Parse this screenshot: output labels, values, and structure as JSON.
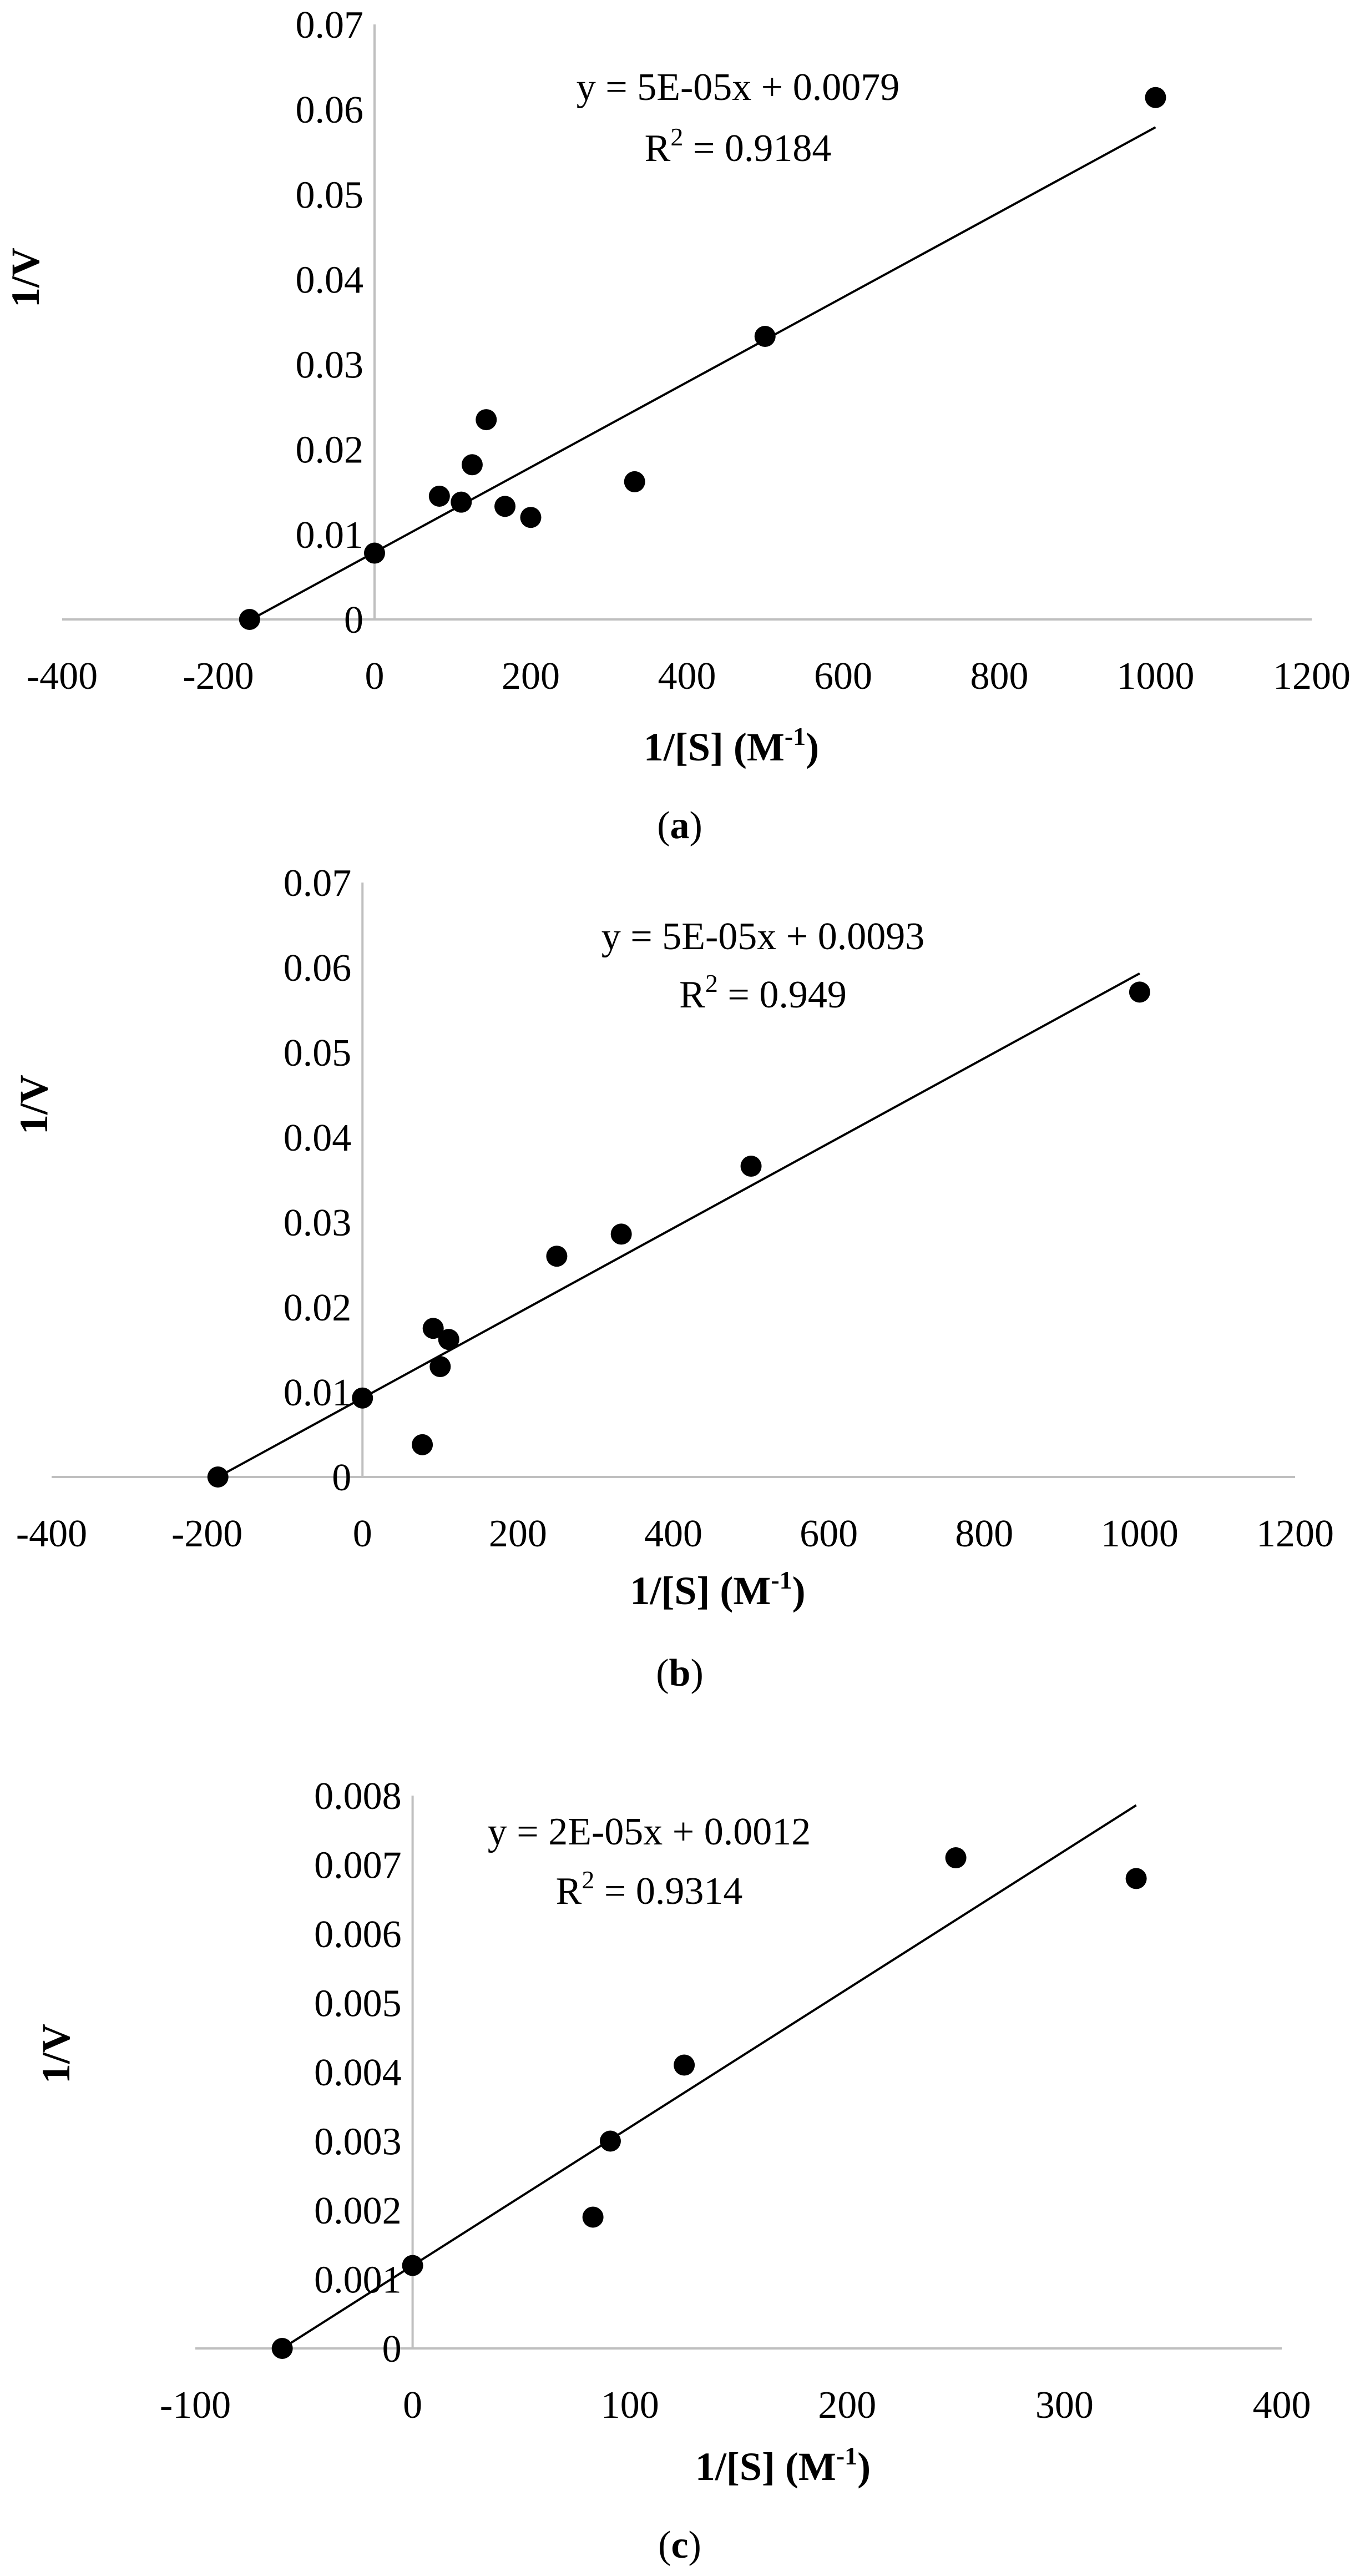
{
  "figure": {
    "panels": [
      {
        "caption_open": "(",
        "caption_letter": "a",
        "caption_close": ")"
      },
      {
        "caption_open": "(",
        "caption_letter": "b",
        "caption_close": ")"
      },
      {
        "caption_open": "(",
        "caption_letter": "c",
        "caption_close": ")"
      }
    ]
  },
  "chart_data": [
    {
      "type": "scatter",
      "title": "",
      "xlabel": "1/[S] (M",
      "xlabel_sup": "-1",
      "xlabel_close": ")",
      "ylabel": "1/V",
      "xlim": [
        -400,
        1200
      ],
      "ylim": [
        0,
        0.07
      ],
      "x_ticks": [
        "-400",
        "-200",
        "0",
        "200",
        "400",
        "600",
        "800",
        "1000",
        "1200"
      ],
      "x_tick_values": [
        -400,
        -200,
        0,
        200,
        400,
        600,
        800,
        1000,
        1200
      ],
      "y_ticks": [
        "0",
        "0.01",
        "0.02",
        "0.03",
        "0.04",
        "0.05",
        "0.06",
        "0.07"
      ],
      "y_tick_values": [
        0,
        0.01,
        0.02,
        0.03,
        0.04,
        0.05,
        0.06,
        0.07
      ],
      "grid": false,
      "series": [
        {
          "x": [
            -160,
            0,
            83,
            111,
            125,
            143,
            167,
            200,
            333,
            500,
            1000
          ],
          "y": [
            0,
            0.0078,
            0.0145,
            0.0138,
            0.0182,
            0.0235,
            0.0133,
            0.012,
            0.0162,
            0.0333,
            0.0614
          ]
        }
      ],
      "trendline": {
        "x_start": -160,
        "x_end": 1000,
        "slope": 5e-05,
        "intercept": 0.0079,
        "equation": "y = 5E-05x + 0.0079",
        "r2_prefix": "R",
        "r2_sup": "2",
        "r2_value": " = 0.9184"
      },
      "colors": {
        "marker": "#000000",
        "trendline": "#000000",
        "axis": "#bfbfbf"
      }
    },
    {
      "type": "scatter",
      "title": "",
      "xlabel": "1/[S] (M",
      "xlabel_sup": "-1",
      "xlabel_close": ")",
      "ylabel": "1/V",
      "xlim": [
        -400,
        1200
      ],
      "ylim": [
        0,
        0.07
      ],
      "x_ticks": [
        "-400",
        "-200",
        "0",
        "200",
        "400",
        "600",
        "800",
        "1000",
        "1200"
      ],
      "x_tick_values": [
        -400,
        -200,
        0,
        200,
        400,
        600,
        800,
        1000,
        1200
      ],
      "y_ticks": [
        "0",
        "0.01",
        "0.02",
        "0.03",
        "0.04",
        "0.05",
        "0.06",
        "0.07"
      ],
      "y_tick_values": [
        0,
        0.01,
        0.02,
        0.03,
        0.04,
        0.05,
        0.06,
        0.07
      ],
      "grid": false,
      "series": [
        {
          "x": [
            -186,
            0,
            77,
            91,
            100,
            111,
            250,
            333,
            500,
            1000
          ],
          "y": [
            0,
            0.0093,
            0.0038,
            0.0175,
            0.013,
            0.0162,
            0.026,
            0.0286,
            0.0366,
            0.0571
          ]
        }
      ],
      "trendline": {
        "x_start": -186,
        "x_end": 1000,
        "slope": 5e-05,
        "intercept": 0.0093,
        "equation": "y = 5E-05x + 0.0093",
        "r2_prefix": "R",
        "r2_sup": "2",
        "r2_value": " = 0.949"
      },
      "colors": {
        "marker": "#000000",
        "trendline": "#000000",
        "axis": "#bfbfbf"
      }
    },
    {
      "type": "scatter",
      "title": "",
      "xlabel": "1/[S] (M",
      "xlabel_sup": "-1",
      "xlabel_close": ")",
      "ylabel": "1/V",
      "xlim": [
        -100,
        400
      ],
      "ylim": [
        0,
        0.008
      ],
      "x_ticks": [
        "-100",
        "0",
        "100",
        "200",
        "300",
        "400"
      ],
      "x_tick_values": [
        -100,
        0,
        100,
        200,
        300,
        400
      ],
      "y_ticks": [
        "0",
        "0.001",
        "0.002",
        "0.003",
        "0.004",
        "0.005",
        "0.006",
        "0.007",
        "0.008"
      ],
      "y_tick_values": [
        0,
        0.001,
        0.002,
        0.003,
        0.004,
        0.005,
        0.006,
        0.007,
        0.008
      ],
      "grid": false,
      "series": [
        {
          "x": [
            -60,
            0,
            83,
            91,
            125,
            250,
            333
          ],
          "y": [
            0,
            0.0012,
            0.0019,
            0.003,
            0.0041,
            0.0071,
            0.0068
          ]
        }
      ],
      "trendline": {
        "x_start": -60,
        "x_end": 333,
        "slope": 2e-05,
        "intercept": 0.0012,
        "equation": "y = 2E-05x + 0.0012",
        "r2_prefix": "R",
        "r2_sup": "2",
        "r2_value": " = 0.9314"
      },
      "colors": {
        "marker": "#000000",
        "trendline": "#000000",
        "axis": "#bfbfbf"
      }
    }
  ]
}
